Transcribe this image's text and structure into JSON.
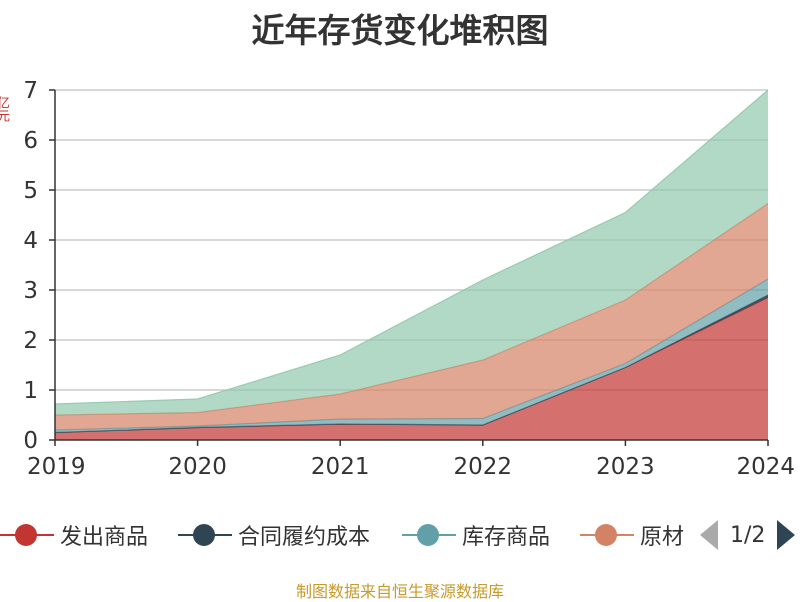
{
  "chart_data": {
    "type": "area",
    "stacked": true,
    "title": "近年存货变化堆积图",
    "xlabel": "",
    "ylabel": "",
    "categories": [
      "2019",
      "2020",
      "2021",
      "2022",
      "2023",
      "2024"
    ],
    "ylim": [
      0,
      7
    ],
    "yticks": [
      "0",
      "1",
      "2",
      "3",
      "4",
      "5",
      "6",
      "7"
    ],
    "grid": true,
    "series": [
      {
        "name": "发出商品",
        "color": "#c23531",
        "values": [
          0.15,
          0.25,
          0.32,
          0.3,
          1.45,
          2.85
        ]
      },
      {
        "name": "合同履约成本",
        "color": "#2f4554",
        "values": [
          0.0,
          0.0,
          0.0,
          0.0,
          0.0,
          0.05
        ]
      },
      {
        "name": "库存商品",
        "color": "#61a0a8",
        "values": [
          0.05,
          0.03,
          0.1,
          0.13,
          0.08,
          0.32
        ]
      },
      {
        "name": "原材料",
        "color": "#d48265",
        "values": [
          0.3,
          0.27,
          0.5,
          1.17,
          1.27,
          1.51
        ]
      },
      {
        "name": "",
        "color": "#91c7ae",
        "values": [
          0.22,
          0.27,
          0.78,
          1.6,
          1.75,
          2.27
        ]
      }
    ]
  },
  "legend": {
    "items": [
      {
        "label": "发出商品",
        "color": "#c23531"
      },
      {
        "label": "合同履约成本",
        "color": "#2f4554"
      },
      {
        "label": "库存商品",
        "color": "#61a0a8"
      },
      {
        "label": "原材",
        "color": "#d48265"
      }
    ],
    "page": "1/2"
  },
  "ylabel_stub": {
    "text": "亿元",
    "color": "#c23531"
  },
  "source": "制图数据来自恒生聚源数据库"
}
